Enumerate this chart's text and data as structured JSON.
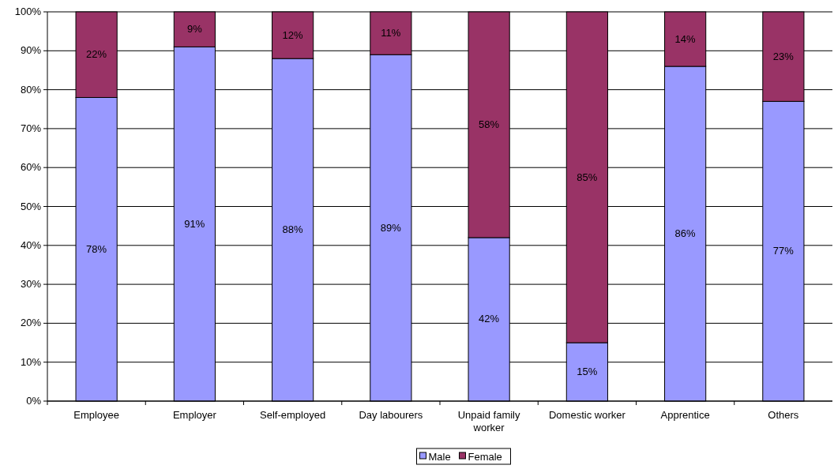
{
  "chart_data": {
    "type": "bar",
    "stacked": true,
    "categories": [
      "Employee",
      "Employer",
      "Self-employed",
      "Day labourers",
      "Unpaid family worker",
      "Domestic worker",
      "Apprentice",
      "Others"
    ],
    "series": [
      {
        "name": "Male",
        "color": "#9999ff",
        "values": [
          78,
          91,
          88,
          89,
          42,
          15,
          86,
          77
        ],
        "value_labels": [
          "78%",
          "91%",
          "88%",
          "89%",
          "42%",
          "15%",
          "86%",
          "77%"
        ]
      },
      {
        "name": "Female",
        "color": "#993366",
        "values": [
          22,
          9,
          12,
          11,
          58,
          85,
          14,
          23
        ],
        "value_labels": [
          "22%",
          "9%",
          "12%",
          "11%",
          "58%",
          "85%",
          "14%",
          "23%"
        ]
      }
    ],
    "ylim": [
      0,
      100
    ],
    "yticks": [
      {
        "value": 0,
        "label": "0%"
      },
      {
        "value": 10,
        "label": "10%"
      },
      {
        "value": 20,
        "label": "20%"
      },
      {
        "value": 30,
        "label": "30%"
      },
      {
        "value": 40,
        "label": "40%"
      },
      {
        "value": 50,
        "label": "50%"
      },
      {
        "value": 60,
        "label": "60%"
      },
      {
        "value": 70,
        "label": "70%"
      },
      {
        "value": 80,
        "label": "80%"
      },
      {
        "value": 90,
        "label": "90%"
      },
      {
        "value": 100,
        "label": "100%"
      }
    ],
    "grid": "y",
    "legend": "bottom"
  }
}
